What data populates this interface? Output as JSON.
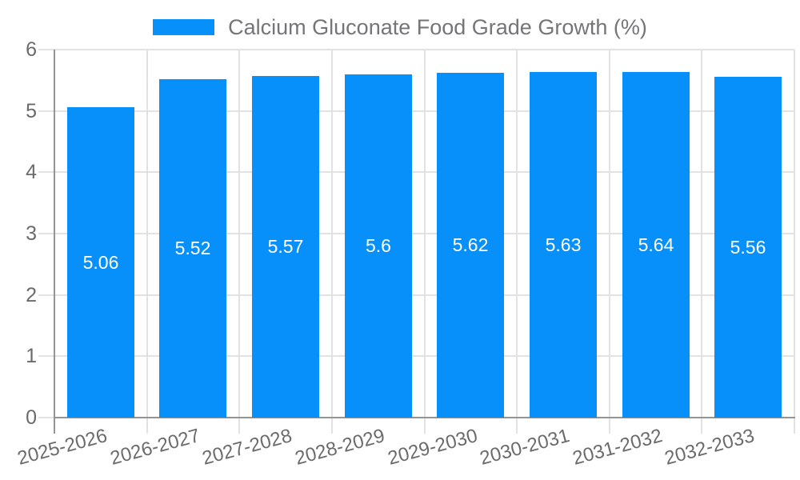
{
  "legend": {
    "label": "Calcium Gluconate Food Grade Growth (%)"
  },
  "colors": {
    "bar": "#0890fa",
    "grid": "#e2e2e2",
    "axis": "#949494",
    "tick_label": "#6b6b6b",
    "legend_text": "#737577",
    "bar_label": "#ffffff",
    "background": "#ffffff"
  },
  "chart_data": {
    "type": "bar",
    "title": "Calcium Gluconate Food Grade Growth (%)",
    "categories": [
      "2025-2026",
      "2026-2027",
      "2027-2028",
      "2028-2029",
      "2029-2030",
      "2030-2031",
      "2031-2032",
      "2032-2033"
    ],
    "values": [
      5.06,
      5.52,
      5.57,
      5.6,
      5.62,
      5.63,
      5.64,
      5.56
    ],
    "series": [
      {
        "name": "Calcium Gluconate Food Grade Growth (%)",
        "values": [
          5.06,
          5.52,
          5.57,
          5.6,
          5.62,
          5.63,
          5.64,
          5.56
        ]
      }
    ],
    "xlabel": "",
    "ylabel": "",
    "ylim": [
      0,
      6
    ],
    "yticks": [
      0,
      1,
      2,
      3,
      4,
      5,
      6
    ],
    "grid": true,
    "legend_position": "top",
    "bar_label_position": "center"
  }
}
